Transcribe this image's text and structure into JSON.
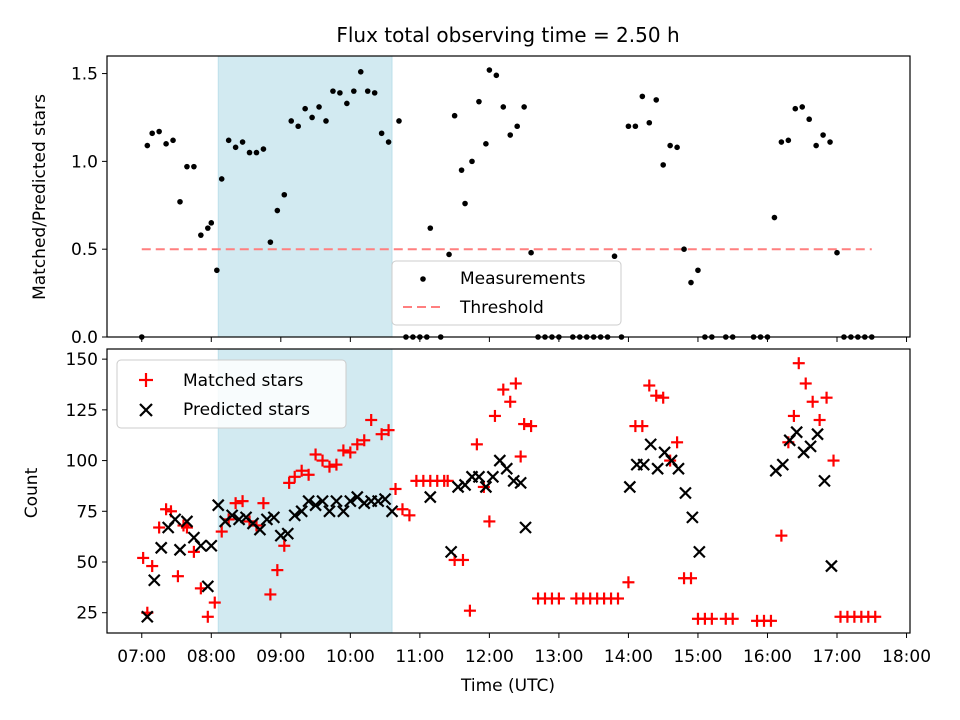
{
  "chart_data": [
    {
      "type": "scatter",
      "title": "Flux total observing time = 2.50 h",
      "xlabel": "",
      "ylabel": "Matched/Predicted stars",
      "ylim": [
        0,
        1.6
      ],
      "yticks": [
        "0.0",
        "0.5",
        "1.0",
        "1.5"
      ],
      "grid": false,
      "legend_position": "lower-center",
      "highlight_span": {
        "x_start_hours": 8.1,
        "x_end_hours": 10.6,
        "color": "#add8e6"
      },
      "threshold": {
        "name": "Threshold",
        "value": 0.5,
        "x_range_hours": [
          7.0,
          17.5
        ],
        "color": "#ff7f7f"
      },
      "series": [
        {
          "name": "Measurements",
          "color": "#000000",
          "x_hours": [
            7.0,
            7.08,
            7.15,
            7.25,
            7.35,
            7.45,
            7.55,
            7.65,
            7.75,
            7.85,
            7.95,
            8.0,
            8.08,
            8.15,
            8.25,
            8.35,
            8.45,
            8.55,
            8.65,
            8.75,
            8.85,
            8.95,
            9.05,
            9.15,
            9.25,
            9.35,
            9.45,
            9.55,
            9.65,
            9.75,
            9.85,
            9.95,
            10.05,
            10.15,
            10.25,
            10.35,
            10.45,
            10.55,
            10.7,
            10.8,
            10.9,
            11.0,
            11.1,
            11.15,
            11.3,
            11.42,
            11.5,
            11.6,
            11.65,
            11.75,
            11.85,
            11.95,
            12.0,
            12.1,
            12.2,
            12.3,
            12.4,
            12.5,
            12.6,
            12.7,
            12.8,
            12.9,
            13.0,
            13.2,
            13.3,
            13.4,
            13.5,
            13.6,
            13.7,
            13.8,
            13.9,
            14.0,
            14.1,
            14.2,
            14.3,
            14.4,
            14.5,
            14.6,
            14.7,
            14.8,
            14.9,
            15.0,
            15.1,
            15.2,
            15.4,
            15.5,
            15.8,
            15.9,
            16.0,
            16.1,
            16.2,
            16.3,
            16.4,
            16.5,
            16.6,
            16.7,
            16.8,
            16.9,
            17.0,
            17.1,
            17.2,
            17.3,
            17.4,
            17.5
          ],
          "y": [
            0.0,
            1.09,
            1.16,
            1.17,
            1.1,
            1.12,
            0.77,
            0.97,
            0.97,
            0.58,
            0.62,
            0.65,
            0.38,
            0.9,
            1.12,
            1.08,
            1.11,
            1.05,
            1.05,
            1.07,
            0.54,
            0.72,
            0.81,
            1.23,
            1.2,
            1.3,
            1.25,
            1.31,
            1.23,
            1.4,
            1.39,
            1.33,
            1.4,
            1.51,
            1.4,
            1.39,
            1.16,
            1.11,
            1.23,
            0.0,
            0.0,
            0.0,
            0.0,
            0.62,
            0.0,
            0.47,
            1.26,
            0.95,
            0.76,
            1.0,
            1.34,
            1.1,
            1.52,
            1.49,
            1.31,
            1.15,
            1.2,
            1.31,
            0.48,
            0.0,
            0.0,
            0.0,
            0.0,
            0.0,
            0.0,
            0.0,
            0.0,
            0.0,
            0.0,
            0.46,
            0.0,
            1.2,
            1.2,
            1.37,
            1.22,
            1.35,
            0.98,
            1.09,
            1.08,
            0.5,
            0.31,
            0.38,
            0.0,
            0.0,
            0.0,
            0.0,
            0.0,
            0.0,
            0.0,
            0.68,
            1.11,
            1.12,
            1.3,
            1.31,
            1.24,
            1.09,
            1.15,
            1.11,
            0.48,
            0.0,
            0.0,
            0.0,
            0.0,
            0.0
          ]
        }
      ]
    },
    {
      "type": "scatter",
      "title": "",
      "xlabel": "Time (UTC)",
      "ylabel": "Count",
      "ylim": [
        15,
        155
      ],
      "yticks": [
        "25",
        "50",
        "75",
        "100",
        "125",
        "150"
      ],
      "xlim_hours": [
        6.5,
        18.05
      ],
      "xticks": [
        "07:00",
        "08:00",
        "09:00",
        "10:00",
        "11:00",
        "12:00",
        "13:00",
        "14:00",
        "15:00",
        "16:00",
        "17:00",
        "18:00"
      ],
      "grid": false,
      "legend_position": "top-left",
      "highlight_span": {
        "x_start_hours": 8.1,
        "x_end_hours": 10.6,
        "color": "#add8e6"
      },
      "series": [
        {
          "name": "Matched stars",
          "marker": "+",
          "color": "#ff0000",
          "x_hours": [
            7.02,
            7.08,
            7.15,
            7.25,
            7.35,
            7.42,
            7.52,
            7.6,
            7.65,
            7.75,
            7.85,
            7.95,
            8.05,
            8.15,
            8.25,
            8.35,
            8.45,
            8.55,
            8.65,
            8.75,
            8.85,
            8.95,
            9.05,
            9.12,
            9.2,
            9.3,
            9.4,
            9.5,
            9.6,
            9.7,
            9.8,
            9.9,
            10.0,
            10.1,
            10.2,
            10.3,
            10.45,
            10.55,
            10.65,
            10.75,
            10.85,
            10.95,
            11.05,
            11.15,
            11.25,
            11.35,
            11.4,
            11.5,
            11.62,
            11.72,
            11.82,
            11.92,
            12.0,
            12.08,
            12.2,
            12.3,
            12.38,
            12.45,
            12.5,
            12.6,
            12.7,
            12.8,
            12.9,
            13.0,
            13.25,
            13.35,
            13.45,
            13.55,
            13.65,
            13.75,
            13.85,
            14.0,
            14.1,
            14.2,
            14.3,
            14.4,
            14.5,
            14.6,
            14.7,
            14.8,
            14.9,
            15.0,
            15.1,
            15.2,
            15.4,
            15.5,
            15.85,
            15.95,
            16.05,
            16.2,
            16.3,
            16.38,
            16.45,
            16.55,
            16.65,
            16.75,
            16.85,
            16.95,
            17.05,
            17.15,
            17.25,
            17.35,
            17.45,
            17.55
          ],
          "y": [
            52,
            25,
            48,
            67,
            76,
            75,
            43,
            68,
            67,
            55,
            37,
            23,
            30,
            65,
            71,
            79,
            80,
            70,
            68,
            79,
            34,
            46,
            58,
            89,
            92,
            95,
            93,
            103,
            100,
            97,
            98,
            105,
            104,
            108,
            110,
            120,
            113,
            115,
            86,
            76,
            73,
            90,
            90,
            90,
            90,
            90,
            90,
            51,
            51,
            26,
            108,
            87,
            70,
            122,
            135,
            129,
            138,
            102,
            118,
            117,
            32,
            32,
            32,
            32,
            32,
            32,
            32,
            32,
            32,
            32,
            32,
            40,
            117,
            117,
            137,
            132,
            131,
            100,
            109,
            42,
            42,
            22,
            22,
            22,
            22,
            22,
            21,
            21,
            21,
            63,
            109,
            122,
            148,
            138,
            129,
            120,
            131,
            100,
            23,
            23,
            23,
            23,
            23,
            23
          ]
        },
        {
          "name": "Predicted stars",
          "marker": "x",
          "color": "#000000",
          "x_hours": [
            7.08,
            7.18,
            7.28,
            7.38,
            7.48,
            7.55,
            7.65,
            7.75,
            7.85,
            7.95,
            8.0,
            8.1,
            8.2,
            8.3,
            8.4,
            8.5,
            8.6,
            8.7,
            8.8,
            8.9,
            9.0,
            9.1,
            9.2,
            9.3,
            9.4,
            9.5,
            9.6,
            9.7,
            9.8,
            9.9,
            10.0,
            10.1,
            10.2,
            10.3,
            10.4,
            10.5,
            10.6,
            11.15,
            11.45,
            11.55,
            11.65,
            11.75,
            11.85,
            11.95,
            12.05,
            12.15,
            12.25,
            12.35,
            12.45,
            12.52,
            14.02,
            14.12,
            14.22,
            14.32,
            14.42,
            14.52,
            14.62,
            14.72,
            14.82,
            14.92,
            15.02,
            16.12,
            16.22,
            16.32,
            16.42,
            16.52,
            16.62,
            16.72,
            16.82,
            16.92
          ],
          "y": [
            23,
            41,
            57,
            67,
            71,
            56,
            70,
            62,
            58,
            38,
            58,
            78,
            70,
            73,
            71,
            72,
            69,
            66,
            71,
            72,
            63,
            64,
            73,
            75,
            80,
            78,
            80,
            75,
            80,
            75,
            80,
            82,
            79,
            80,
            80,
            81,
            75,
            82,
            55,
            87,
            88,
            92,
            92,
            87,
            92,
            100,
            96,
            90,
            89,
            67,
            87,
            98,
            98,
            108,
            96,
            104,
            100,
            96,
            84,
            72,
            55,
            95,
            98,
            110,
            114,
            104,
            107,
            113,
            90,
            48
          ]
        }
      ]
    }
  ]
}
